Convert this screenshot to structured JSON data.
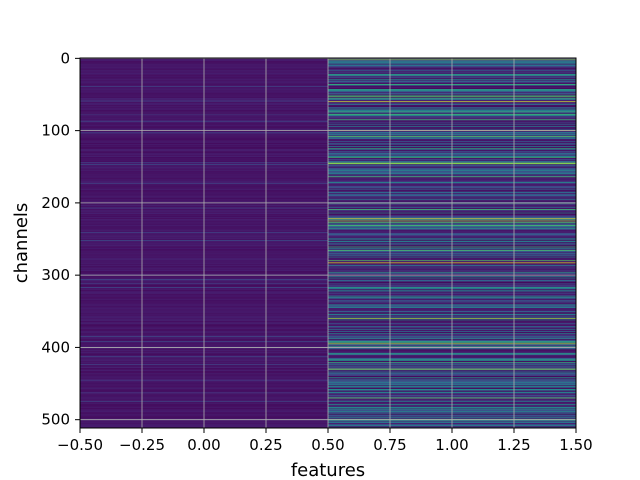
{
  "chart_data": {
    "type": "heatmap",
    "title": "",
    "xlabel": "features",
    "ylabel": "channels",
    "xlim": [
      -0.5,
      1.5
    ],
    "ylim": [
      511.5,
      -0.5
    ],
    "x_ticks": [
      -0.5,
      -0.25,
      0.0,
      0.25,
      0.5,
      0.75,
      1.0,
      1.25,
      1.5
    ],
    "x_tick_labels": [
      "−0.50",
      "−0.25",
      "0.00",
      "0.25",
      "0.50",
      "0.75",
      "1.00",
      "1.25",
      "1.50"
    ],
    "y_ticks": [
      0,
      100,
      200,
      300,
      400,
      500
    ],
    "y_tick_labels": [
      "0",
      "100",
      "200",
      "300",
      "400",
      "500"
    ],
    "grid": true,
    "colormap": "viridis",
    "columns": [
      {
        "feature_index": 0,
        "note": "mostly low values, deep purple"
      },
      {
        "feature_index": 1,
        "note": "mixed low/mid/high values"
      }
    ],
    "n_channels": 512,
    "highlight_rows_feature_1": [
      2,
      60,
      100,
      145,
      200,
      222,
      225,
      280,
      283,
      360,
      395,
      430,
      470,
      500
    ]
  }
}
